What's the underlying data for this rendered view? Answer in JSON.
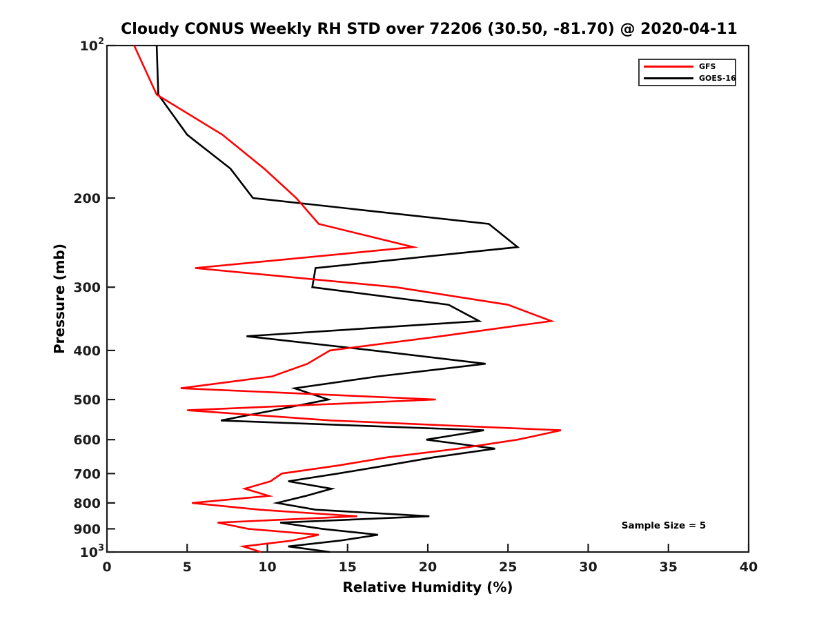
{
  "title": "Cloudy CONUS Weekly RH STD over 72206 (30.50, -81.70) @ 2020-04-11",
  "annotation": "Sample Size = 5",
  "axes": {
    "xlabel": "Relative Humidity (%)",
    "ylabel": "Pressure (mb)",
    "xticks": [
      0,
      5,
      10,
      15,
      20,
      25,
      30,
      35,
      40
    ],
    "yticks": [
      {
        "p": 100,
        "base": "10",
        "sup": "2"
      },
      {
        "p": 200,
        "text": "200"
      },
      {
        "p": 300,
        "text": "300"
      },
      {
        "p": 400,
        "text": "400"
      },
      {
        "p": 500,
        "text": "500"
      },
      {
        "p": 600,
        "text": "600"
      },
      {
        "p": 700,
        "text": "700"
      },
      {
        "p": 800,
        "text": "800"
      },
      {
        "p": 900,
        "text": "900"
      },
      {
        "p": 1000,
        "base": "10",
        "sup": "3"
      }
    ]
  },
  "legend": {
    "items": [
      {
        "label": "GFS",
        "color": "#ff0000"
      },
      {
        "label": "GOES-16",
        "color": "#000000"
      }
    ]
  },
  "chart_data": {
    "type": "line",
    "title": "Cloudy CONUS Weekly RH STD over 72206 (30.50, -81.70) @ 2020-04-11",
    "xlabel": "Relative Humidity (%)",
    "ylabel": "Pressure (mb)",
    "xlim": [
      0,
      40
    ],
    "ylim": [
      100,
      1000
    ],
    "yscale": "log",
    "y_direction": "increasing-downward",
    "grid": false,
    "legend_position": "upper right",
    "annotation": "Sample Size = 5",
    "pressure_mb": [
      100,
      125,
      150,
      175,
      200,
      225,
      250,
      275,
      300,
      325,
      350,
      375,
      400,
      425,
      450,
      475,
      500,
      525,
      550,
      575,
      600,
      625,
      650,
      675,
      700,
      725,
      750,
      775,
      800,
      825,
      850,
      875,
      900,
      925,
      950,
      975,
      1000
    ],
    "series": [
      {
        "name": "GOES-16",
        "color": "#000000",
        "values": [
          3.1,
          3.2,
          5.0,
          7.7,
          9.1,
          23.8,
          25.6,
          13.0,
          12.8,
          21.3,
          23.2,
          8.7,
          16.6,
          23.6,
          16.9,
          11.7,
          13.8,
          10.4,
          7.1,
          23.5,
          19.9,
          24.2,
          20.4,
          17.4,
          14.4,
          11.3,
          14.0,
          12.4,
          10.6,
          13.0,
          20.1,
          10.8,
          13.4,
          16.9,
          14.5,
          11.3,
          13.9
        ]
      },
      {
        "name": "GFS",
        "color": "#ff0000",
        "values": [
          1.7,
          3.1,
          7.2,
          9.8,
          11.8,
          13.2,
          19.1,
          5.5,
          18.0,
          25.0,
          27.7,
          20.8,
          13.9,
          12.5,
          10.3,
          4.6,
          20.5,
          5.0,
          14.0,
          28.3,
          25.6,
          21.9,
          17.5,
          14.4,
          10.9,
          10.2,
          8.6,
          10.1,
          5.3,
          9.5,
          15.6,
          6.9,
          8.8,
          13.2,
          11.5,
          8.5,
          9.6
        ]
      }
    ]
  }
}
